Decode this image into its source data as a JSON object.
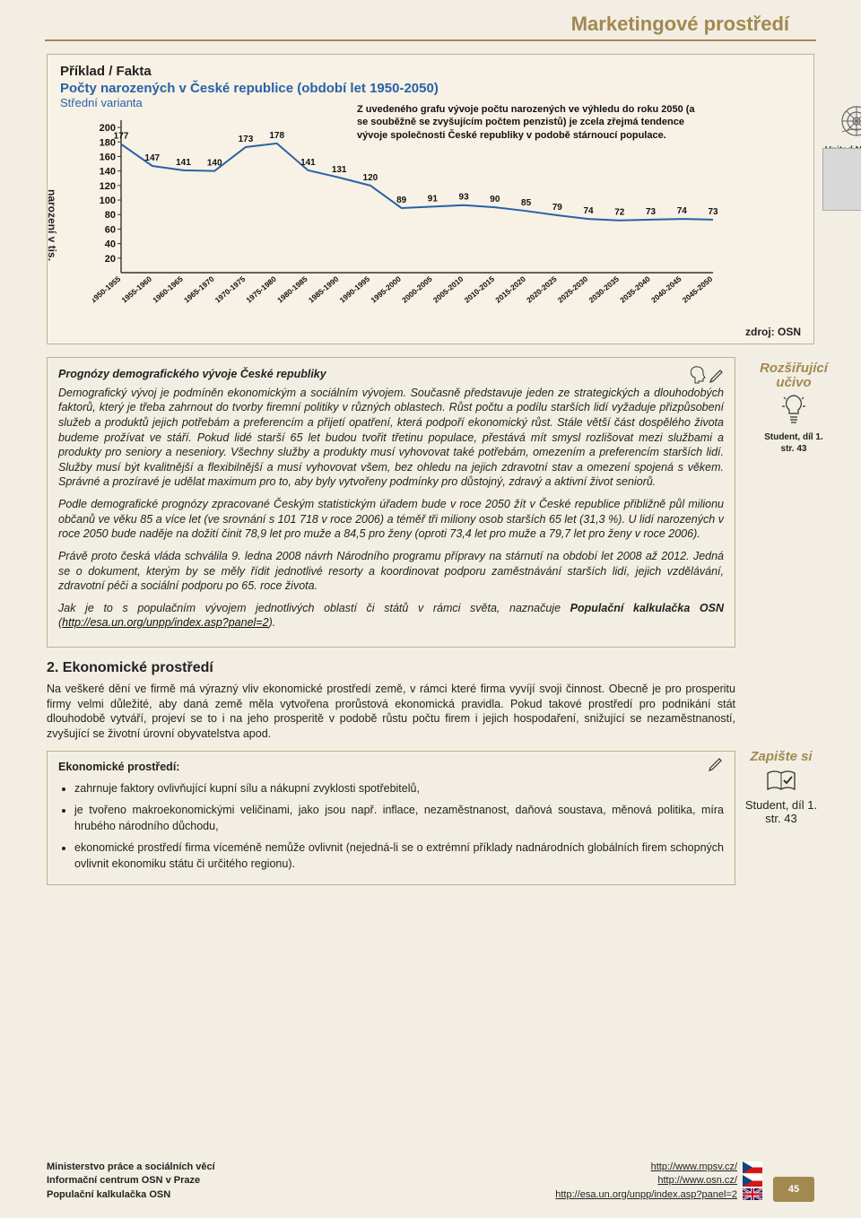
{
  "page_title": "Marketingové prostředí",
  "chart": {
    "type": "line",
    "heading": "Příklad / Fakta",
    "subtitle": "Počty narozených v České republice (období let 1950-2050)",
    "variant": "Střední varianta",
    "y_label": "narození v tis.",
    "note": "Z uvedeného grafu vývoje počtu narozených ve výhledu do roku 2050 (a se souběžně se zvyšujícím počtem penzistů) je zcela zřejmá tendence vývoje společnosti České republiky v podobě stárnoucí populace.",
    "un_label": "United Nations",
    "source": "zdroj: OSN",
    "x_categories": [
      "1950-1955",
      "1955-1960",
      "1960-1965",
      "1965-1970",
      "1970-1975",
      "1975-1980",
      "1980-1985",
      "1985-1990",
      "1990-1995",
      "1995-2000",
      "2000-2005",
      "2005-2010",
      "2010-2015",
      "2015-2020",
      "2020-2025",
      "2025-2030",
      "2030-2035",
      "2035-2040",
      "2040-2045",
      "2045-2050"
    ],
    "values": [
      177,
      147,
      141,
      140,
      173,
      178,
      141,
      131,
      120,
      89,
      91,
      93,
      90,
      85,
      79,
      74,
      72,
      73,
      74,
      73
    ],
    "y_ticks": [
      20,
      40,
      60,
      80,
      100,
      120,
      140,
      160,
      180,
      200
    ],
    "ylim": [
      0,
      210
    ],
    "line_color": "#2961a8",
    "grid_color": "#f7f2e5",
    "axis_color": "#333333",
    "background": "#f7f2e5",
    "title_fontsize": 15,
    "label_fontsize": 11,
    "tick_fontsize": 11,
    "line_width": 2
  },
  "prognosis": {
    "title": "Prognózy demografického vývoje České republiky",
    "p1": "Demografický vývoj je podmíněn ekonomickým a sociálním vývojem. Současně představuje jeden ze strategických a dlouhodobých faktorů, který je třeba zahrnout do tvorby firemní politiky v různých oblastech. Růst počtu a podílu starších lidí vyžaduje přizpůsobení služeb a produktů jejich potřebám a preferencím a přijetí opatření, která podpoří ekonomický růst. Stále větší část dospělého života budeme prožívat ve stáří. Pokud lidé starší 65 let budou tvořit třetinu populace, přestává mít smysl rozlišovat mezi službami a produkty pro seniory a neseniory. Všechny služby a produkty musí vyhovovat také potřebám, omezením a preferencím starších lidí. Služby musí být kvalitnější a flexibilnější a musí vyhovovat všem, bez ohledu na jejich zdravotní stav a omezení spojená s věkem. Správné a prozíravé je udělat maximum pro to, aby byly vytvořeny podmínky pro důstojný, zdravý a aktivní život seniorů.",
    "p2": "Podle demografické prognózy zpracované Českým statistickým úřadem bude v roce 2050 žít v České republice přibližně půl milionu občanů ve věku 85 a více let (ve srovnání s 101 718 v roce 2006) a téměř tři miliony osob starších 65 let (31,3 %). U lidí narozených v roce 2050 bude naděje na dožití činit 78,9 let pro muže a 84,5 pro ženy (oproti 73,4 let pro muže a 79,7 let pro ženy v roce 2006).",
    "p3": "Právě proto česká vláda schválila 9. ledna 2008 návrh Národního programu přípravy na stárnutí na období let 2008 až 2012. Jedná se o dokument, kterým by se měly řídit jednotlivé resorty a koordinovat podporu zaměstnávání starších lidí, jejich vzdělávání, zdravotní péči a sociální podporu po 65. roce života.",
    "p4_a": "Jak je to s populačním vývojem jednotlivých oblastí či států v rámci světa, naznačuje ",
    "p4_b": "Populační kalkulačka OSN",
    "p4_c": " (",
    "p4_link": "http://esa.un.org/unpp/index.asp?panel=2",
    "p4_d": ")."
  },
  "sidebar": {
    "rozsirujici": "Rozšiřující učivo",
    "zapiste": "Zapište si",
    "student1": "Student, díl 1.",
    "page1": "str. 43",
    "page2": "str. 43"
  },
  "econ": {
    "heading": "2. Ekonomické prostředí",
    "intro": "Na veškeré dění ve firmě má výrazný vliv ekonomické prostředí země, v rámci které firma vyvíjí svoji činnost. Obecně je pro prosperitu firmy velmi důležité, aby daná země měla vytvořena prorůstová ekonomická pravidla. Pokud takové prostředí pro podnikání stát dlouhodobě vytváří, projeví se to i na jeho prosperitě v podobě růstu počtu firem i jejich hospodaření, snižující se nezaměstnaností, zvyšující se životní úrovní obyvatelstva apod.",
    "box_title": "Ekonomické prostředí:",
    "b1": "zahrnuje faktory ovlivňující kupní sílu a nákupní zvyklosti spotřebitelů,",
    "b2": "je tvořeno makroekonomickými veličinami, jako jsou např. inflace, nezaměstnanost, daňová soustava, měnová politika, míra hrubého národního důchodu,",
    "b3": "ekonomické prostředí firma víceméně nemůže ovlivnit (nejedná-li se o extrémní příklady nadnárodních globálních firem schopných ovlivnit ekonomiku státu či určitého regionu)."
  },
  "footer": {
    "r1": "Ministerstvo práce a sociálních věcí",
    "r2": "Informační centrum OSN v Praze",
    "r3": "Populační kalkulačka OSN",
    "u1": "http://www.mpsv.cz/",
    "u2": "http://www.osn.cz/",
    "u3": "http://esa.un.org/unpp/index.asp?panel=2",
    "page_num": "45"
  },
  "colors": {
    "brand": "#a1894f",
    "link_blue": "#2961a8",
    "page_bg": "#f3eee4"
  }
}
